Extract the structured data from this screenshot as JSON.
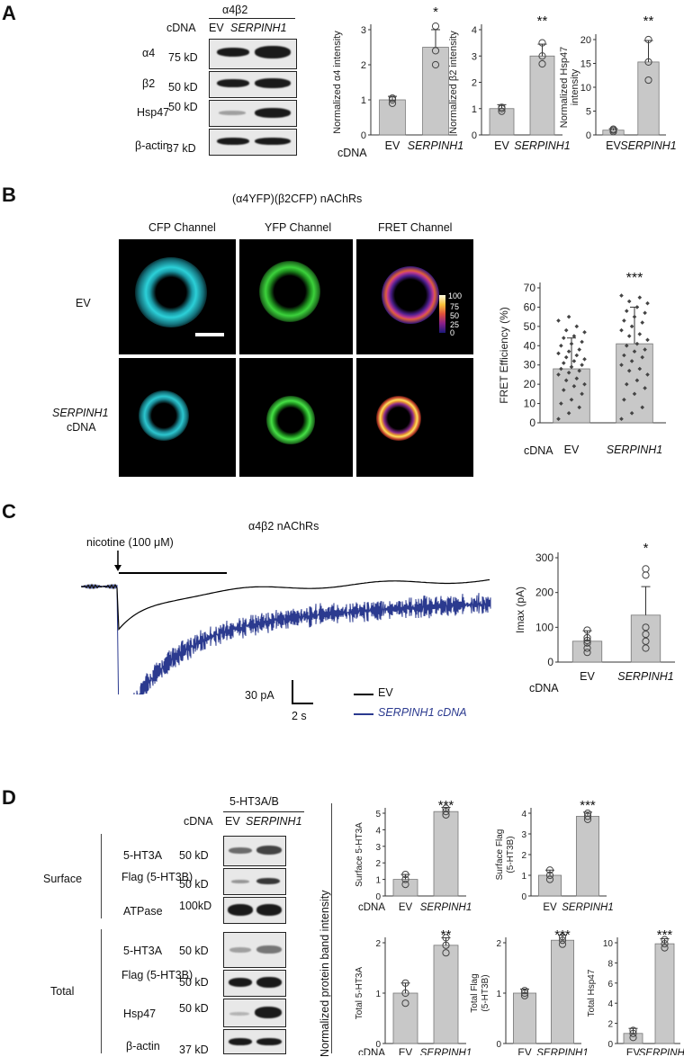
{
  "panels": [
    "A",
    "B",
    "C",
    "D"
  ],
  "panelA": {
    "blot": {
      "group_label": "α4β2",
      "cdna_label": "cDNA",
      "lanes": [
        "EV",
        "SERPINH1"
      ],
      "rows": [
        {
          "protein": "α4",
          "mw": "75 kD"
        },
        {
          "protein": "β2",
          "mw": "50 kD"
        },
        {
          "protein": "Hsp47",
          "mw": "50 kD"
        },
        {
          "protein": "β-actin",
          "mw": "37 kD"
        }
      ]
    },
    "cdna_label": "cDNA",
    "stars": [
      "*",
      "**",
      "**"
    ]
  },
  "panelB": {
    "title": "(α4YFP)(β2CFP) nAChRs",
    "channels": [
      "CFP Channel",
      "YFP Channel",
      "FRET Channel"
    ],
    "rows": [
      "EV",
      "SERPINH1",
      "cDNA"
    ],
    "colorbar_ticks": [
      "100",
      "75",
      "50",
      "25",
      "0"
    ],
    "cdna_label": "cDNA",
    "stars": "***"
  },
  "panelC": {
    "title": "α4β2 nAChRs",
    "stimulus": "nicotine (100 μM)",
    "scale_y": "30 pA",
    "scale_x": "2 s",
    "legend": [
      {
        "label": "EV",
        "color": "#000000"
      },
      {
        "label": "SERPINH1 cDNA",
        "color": "#2b3a8f"
      }
    ],
    "cdna_label": "cDNA",
    "stars": "*"
  },
  "panelD": {
    "group_label": "5-HT3A/B",
    "cdna_label": "cDNA",
    "lanes": [
      "EV",
      "SERPINH1"
    ],
    "section_surface": "Surface",
    "section_total": "Total",
    "surface_rows": [
      {
        "protein": "5-HT3A",
        "mw": "50 kD"
      },
      {
        "protein": "Flag (5-HT3B)",
        "mw": "50 kD"
      },
      {
        "protein": "ATPase",
        "mw": "100kD"
      }
    ],
    "total_rows": [
      {
        "protein": "5-HT3A",
        "mw": "50 kD"
      },
      {
        "protein": "Flag (5-HT3B)",
        "mw": "50 kD"
      },
      {
        "protein": "Hsp47",
        "mw": "50 kD"
      },
      {
        "protein": "β-actin",
        "mw": "37 kD"
      }
    ],
    "shared_ylabel": "Normalized protein band intensity",
    "stars": [
      "***",
      "***",
      "**",
      "***",
      "***"
    ]
  },
  "chart_data": [
    {
      "id": "A-alpha4",
      "type": "bar",
      "categories": [
        "EV",
        "SERPINH1"
      ],
      "values": [
        1.0,
        2.5
      ],
      "errors": [
        0.1,
        0.5
      ],
      "points": [
        [
          0.9,
          1.0,
          1.05
        ],
        [
          2.0,
          2.4,
          3.1
        ]
      ],
      "ylabel": "Normalized α4 intensity",
      "ylim": [
        0,
        3
      ],
      "yticks": [
        0,
        1,
        2,
        3
      ],
      "stars": "*"
    },
    {
      "id": "A-beta2",
      "type": "bar",
      "categories": [
        "EV",
        "SERPINH1"
      ],
      "values": [
        1.0,
        3.0
      ],
      "errors": [
        0.15,
        0.45
      ],
      "points": [
        [
          0.9,
          1.0,
          1.05
        ],
        [
          2.7,
          3.0,
          3.5
        ]
      ],
      "ylabel": "Normalized β2 intensity",
      "ylim": [
        0,
        4
      ],
      "yticks": [
        0,
        1,
        2,
        3,
        4
      ],
      "stars": "**"
    },
    {
      "id": "A-hsp47",
      "type": "bar",
      "categories": [
        "EV",
        "SERPINH1"
      ],
      "values": [
        1.0,
        15.3
      ],
      "errors": [
        0.3,
        4.5
      ],
      "points": [
        [
          0.7,
          1.0,
          1.2
        ],
        [
          11.5,
          15.3,
          20.0
        ]
      ],
      "ylabel": "Normalized Hsp47 intensity",
      "ylim": [
        0,
        20
      ],
      "yticks": [
        0,
        5,
        10,
        15,
        20
      ],
      "stars": "**"
    },
    {
      "id": "B-fret",
      "type": "bar",
      "categories": [
        "EV",
        "SERPINH1"
      ],
      "values": [
        28,
        41
      ],
      "errors": [
        16,
        19
      ],
      "ylabel": "FRET Efficiency (%)",
      "ylim": [
        0,
        70
      ],
      "yticks": [
        0,
        10,
        20,
        30,
        40,
        50,
        60,
        70
      ],
      "stars": "***",
      "points": [
        [
          2,
          5,
          8,
          10,
          12,
          15,
          17,
          19,
          20,
          22,
          23,
          25,
          26,
          27,
          28,
          29,
          30,
          31,
          32,
          33,
          34,
          35,
          36,
          37,
          38,
          40,
          41,
          42,
          44,
          45,
          47,
          48,
          50,
          53,
          55
        ],
        [
          2,
          5,
          8,
          12,
          15,
          18,
          20,
          22,
          25,
          27,
          28,
          30,
          32,
          34,
          35,
          37,
          38,
          40,
          41,
          43,
          45,
          46,
          48,
          50,
          52,
          53,
          55,
          57,
          58,
          60,
          62,
          63,
          65,
          66
        ]
      ]
    },
    {
      "id": "C-imax",
      "type": "bar",
      "categories": [
        "EV",
        "SERPINH1"
      ],
      "values": [
        60,
        135
      ],
      "errors": [
        30,
        82
      ],
      "points": [
        [
          28,
          40,
          55,
          62,
          70,
          92
        ],
        [
          40,
          60,
          80,
          100,
          250,
          268
        ]
      ],
      "ylabel": "Imax (pA)",
      "ylim": [
        0,
        300
      ],
      "yticks": [
        0,
        100,
        200,
        300
      ],
      "stars": "*"
    },
    {
      "id": "D-surface-5ht3a",
      "type": "bar",
      "categories": [
        "EV",
        "SERPINH1"
      ],
      "values": [
        1.0,
        5.1
      ],
      "errors": [
        0.3,
        0.25
      ],
      "points": [
        [
          0.7,
          1.0,
          1.3
        ],
        [
          4.9,
          5.1,
          5.3
        ]
      ],
      "ylabel": "Surface 5-HT3A",
      "ylim": [
        0,
        5
      ],
      "yticks": [
        0,
        1,
        2,
        3,
        4,
        5
      ],
      "stars": "***"
    },
    {
      "id": "D-surface-flag",
      "type": "bar",
      "categories": [
        "EV",
        "SERPINH1"
      ],
      "values": [
        1.0,
        3.85
      ],
      "errors": [
        0.25,
        0.2
      ],
      "points": [
        [
          0.8,
          1.0,
          1.25
        ],
        [
          3.7,
          3.85,
          4.0
        ]
      ],
      "ylabel": "Surface Flag (5-HT3B)",
      "ylim": [
        0,
        4
      ],
      "yticks": [
        0,
        1,
        2,
        3,
        4
      ],
      "stars": "***"
    },
    {
      "id": "D-total-5ht3a",
      "type": "bar",
      "categories": [
        "EV",
        "SERPINH1"
      ],
      "values": [
        1.0,
        1.95
      ],
      "errors": [
        0.2,
        0.15
      ],
      "points": [
        [
          0.8,
          1.0,
          1.2
        ],
        [
          1.8,
          1.95,
          2.1
        ]
      ],
      "ylabel": "Total 5-HT3A",
      "ylim": [
        0,
        2
      ],
      "yticks": [
        0,
        1,
        2
      ],
      "stars": "**"
    },
    {
      "id": "D-total-flag",
      "type": "bar",
      "categories": [
        "EV",
        "SERPINH1"
      ],
      "values": [
        1.0,
        2.05
      ],
      "errors": [
        0.08,
        0.1
      ],
      "points": [
        [
          0.95,
          1.0,
          1.05
        ],
        [
          1.97,
          2.05,
          2.12
        ]
      ],
      "ylabel": "Total Flag (5-HT3B)",
      "ylim": [
        0,
        2
      ],
      "yticks": [
        0,
        1,
        2
      ],
      "stars": "***"
    },
    {
      "id": "D-total-hsp47",
      "type": "bar",
      "categories": [
        "EV",
        "SERPINH1"
      ],
      "values": [
        1.0,
        9.9
      ],
      "errors": [
        0.5,
        0.5
      ],
      "points": [
        [
          0.6,
          1.0,
          1.3
        ],
        [
          9.5,
          9.9,
          10.3
        ]
      ],
      "ylabel": "Total Hsp47",
      "ylim": [
        0,
        10
      ],
      "yticks": [
        0,
        2,
        4,
        6,
        8,
        10
      ],
      "stars": "***"
    }
  ]
}
